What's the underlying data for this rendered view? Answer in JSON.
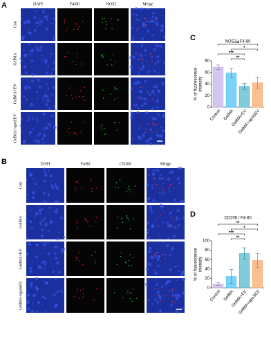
{
  "panel_a": {
    "label": "A",
    "columns": [
      "DAPI",
      "F4/80",
      "NOS2",
      "Merge"
    ],
    "rows": [
      "Con",
      "GelMA",
      "GelMA+EV",
      "GelMA+apoSEV"
    ]
  },
  "panel_b": {
    "label": "B",
    "columns": [
      "DAPI",
      "F4/80",
      "CD206",
      "Merge"
    ],
    "rows": [
      "Con",
      "GelMA",
      "GelMA+EV",
      "GelMA+apoSEV"
    ]
  },
  "chart_data": [
    {
      "panel": "C",
      "type": "bar",
      "title": "NOS2 / F4-80",
      "y_label": [
        "% of fluorescence",
        "intensity"
      ],
      "categories": [
        "Control",
        "GelMA",
        "GelMA+EV",
        "GelMA+apoSEV"
      ],
      "colors": [
        "#c7b3ea",
        "#4fc3f7",
        "#5ab8cf",
        "#f9aa72"
      ],
      "values": [
        69,
        59,
        36,
        42
      ],
      "errors": [
        4,
        8,
        5,
        10
      ],
      "ylim": [
        0,
        80
      ],
      "yticks": [
        0,
        20,
        40,
        60,
        80
      ],
      "significance": [
        {
          "pair": [
            "Control",
            "GelMA+apoSEV"
          ],
          "label": "**"
        },
        {
          "pair": [
            "GelMA",
            "GelMA+apoSEV"
          ],
          "label": "*"
        },
        {
          "pair": [
            "Control",
            "GelMA+EV"
          ],
          "label": "***"
        },
        {
          "pair": [
            "GelMA",
            "GelMA+EV"
          ],
          "label": "**"
        }
      ]
    },
    {
      "panel": "D",
      "type": "bar",
      "title": "CD206 / F4-80",
      "y_label": [
        "% of fluorescence",
        "intensity"
      ],
      "categories": [
        "Control",
        "GelMA",
        "GelMA+EV",
        "GelMA+apoSEV"
      ],
      "colors": [
        "#c7b3ea",
        "#4fc3f7",
        "#5ab8cf",
        "#f9aa72"
      ],
      "values": [
        8,
        24,
        73,
        58
      ],
      "errors": [
        3,
        15,
        12,
        15
      ],
      "ylim": [
        0,
        100
      ],
      "yticks": [
        0,
        20,
        40,
        60,
        80,
        100
      ],
      "significance": [
        {
          "pair": [
            "Control",
            "GelMA+apoSEV"
          ],
          "label": "**"
        },
        {
          "pair": [
            "GelMA",
            "GelMA+apoSEV"
          ],
          "label": "*"
        },
        {
          "pair": [
            "Control",
            "GelMA+EV"
          ],
          "label": "***"
        },
        {
          "pair": [
            "GelMA",
            "GelMA+EV"
          ],
          "label": "**"
        }
      ]
    }
  ]
}
